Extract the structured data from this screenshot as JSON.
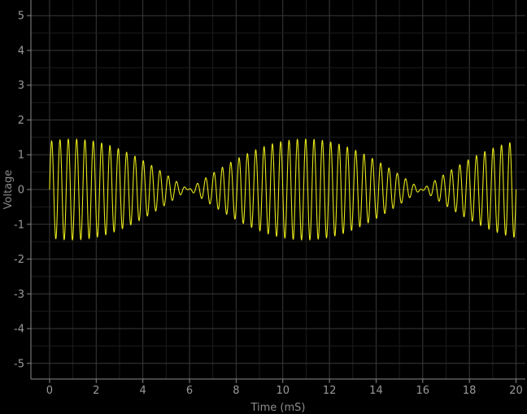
{
  "chart_data": {
    "type": "line",
    "title": "",
    "xlabel": "Time (mS)",
    "ylabel": "Voltage",
    "xlim": [
      -0.8,
      20.4
    ],
    "ylim": [
      -5.45,
      5.45
    ],
    "x_ticks": [
      0,
      2,
      4,
      6,
      8,
      10,
      12,
      14,
      16,
      18,
      20
    ],
    "y_ticks": [
      5,
      4,
      3,
      2,
      1,
      0,
      -1,
      -2,
      -3,
      -4,
      -5
    ],
    "grid": true,
    "legend": "none",
    "series": [
      {
        "color": "#e8e81a",
        "carrier_frequency_khz": 2.8,
        "beat_frequency_khz": 0.1,
        "envelope_peak": 1.45,
        "x_range": [
          0,
          20
        ]
      }
    ]
  }
}
